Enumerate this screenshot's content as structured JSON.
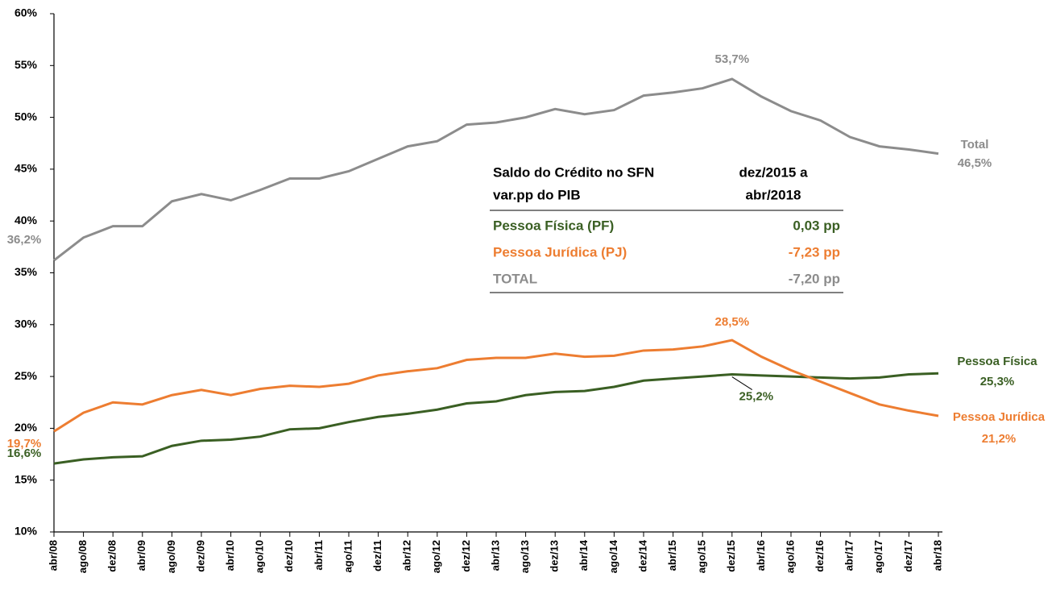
{
  "chart_data": {
    "type": "line",
    "categories": [
      "abr/08",
      "ago/08",
      "dez/08",
      "abr/09",
      "ago/09",
      "dez/09",
      "abr/10",
      "ago/10",
      "dez/10",
      "abr/11",
      "ago/11",
      "dez/11",
      "abr/12",
      "ago/12",
      "dez/12",
      "abr/13",
      "ago/13",
      "dez/13",
      "abr/14",
      "ago/14",
      "dez/14",
      "abr/15",
      "ago/15",
      "dez/15",
      "abr/16",
      "ago/16",
      "dez/16",
      "abr/17",
      "ago/17",
      "dez/17",
      "abr/18"
    ],
    "series": [
      {
        "name": "Total",
        "color": "#8c8c8c",
        "values": [
          36.2,
          38.4,
          39.5,
          39.5,
          41.9,
          42.6,
          42.0,
          43.0,
          44.1,
          44.1,
          44.8,
          46.0,
          47.2,
          47.7,
          49.3,
          49.5,
          50.0,
          50.8,
          50.3,
          50.7,
          52.1,
          52.4,
          52.8,
          53.7,
          52.0,
          50.6,
          49.7,
          48.1,
          47.2,
          46.9,
          46.5
        ],
        "value_labels": [
          "36,2%",
          null,
          null,
          null,
          null,
          null,
          null,
          null,
          null,
          null,
          null,
          null,
          null,
          null,
          null,
          null,
          null,
          null,
          null,
          null,
          null,
          null,
          null,
          "53,7%",
          null,
          null,
          null,
          null,
          null,
          null,
          "46,5%"
        ]
      },
      {
        "name": "Pessoa Física",
        "color": "#3a5f23",
        "values": [
          16.6,
          17.0,
          17.2,
          17.3,
          18.3,
          18.8,
          18.9,
          19.2,
          19.9,
          20.0,
          20.6,
          21.1,
          21.4,
          21.8,
          22.4,
          22.6,
          23.2,
          23.5,
          23.6,
          24.0,
          24.6,
          24.8,
          25.0,
          25.2,
          25.1,
          25.0,
          24.9,
          24.8,
          24.9,
          25.2,
          25.3
        ],
        "value_labels": [
          "16,6%",
          null,
          null,
          null,
          null,
          null,
          null,
          null,
          null,
          null,
          null,
          null,
          null,
          null,
          null,
          null,
          null,
          null,
          null,
          null,
          null,
          null,
          null,
          "25,2%",
          null,
          null,
          null,
          null,
          null,
          null,
          "25,3%"
        ]
      },
      {
        "name": "Pessoa Jurídica",
        "color": "#ed7d31",
        "values": [
          19.7,
          21.5,
          22.5,
          22.3,
          23.2,
          23.7,
          23.2,
          23.8,
          24.1,
          24.0,
          24.3,
          25.1,
          25.5,
          25.8,
          26.6,
          26.8,
          26.8,
          27.2,
          26.9,
          27.0,
          27.5,
          27.6,
          27.9,
          28.5,
          26.9,
          25.6,
          24.5,
          23.4,
          22.3,
          21.7,
          21.2
        ],
        "value_labels": [
          "19,7%",
          null,
          null,
          null,
          null,
          null,
          null,
          null,
          null,
          null,
          null,
          null,
          null,
          null,
          null,
          null,
          null,
          null,
          null,
          null,
          null,
          null,
          null,
          "28,5%",
          null,
          null,
          null,
          null,
          null,
          null,
          "21,2%"
        ]
      }
    ],
    "ylim": [
      10,
      60
    ],
    "yticks": [
      {
        "value": 10,
        "label": "10%"
      },
      {
        "value": 15,
        "label": "15%"
      },
      {
        "value": 20,
        "label": "20%"
      },
      {
        "value": 25,
        "label": "25%"
      },
      {
        "value": 30,
        "label": "30%"
      },
      {
        "value": 35,
        "label": "35%"
      },
      {
        "value": 40,
        "label": "40%"
      },
      {
        "value": 45,
        "label": "45%"
      },
      {
        "value": 50,
        "label": "50%"
      },
      {
        "value": 55,
        "label": "55%"
      },
      {
        "value": 60,
        "label": "60%"
      }
    ],
    "grid": false,
    "table": {
      "header": [
        [
          "Saldo do Crédito no SFN",
          "dez/2015 a"
        ],
        [
          "var.pp do PIB",
          "abr/2018"
        ]
      ],
      "rows": [
        {
          "label": "Pessoa Física (PF)",
          "value": "0,03 pp",
          "color": "#3a5f23"
        },
        {
          "label": "Pessoa Jurídica (PJ)",
          "value": "-7,23 pp",
          "color": "#ed7d31"
        },
        {
          "label": "TOTAL",
          "value": "-7,20 pp",
          "color": "#8c8c8c"
        }
      ]
    }
  }
}
